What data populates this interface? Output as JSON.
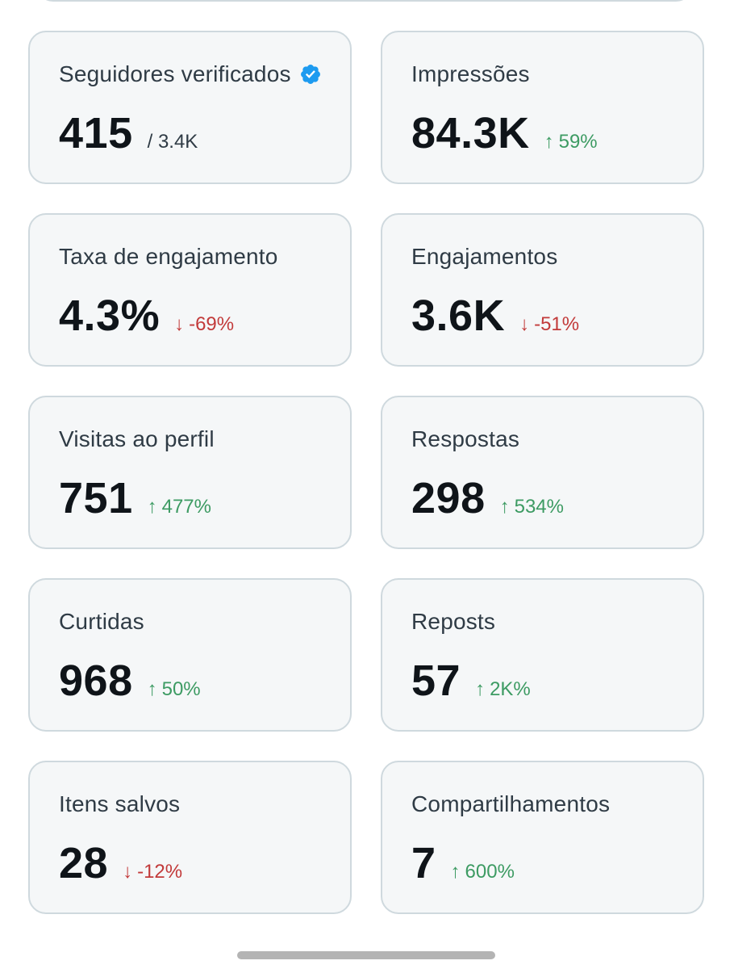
{
  "metrics": [
    {
      "label": "Seguidores verificados",
      "value": "415",
      "total": "/ 3.4K",
      "verified": true
    },
    {
      "label": "Impressões",
      "value": "84.3K",
      "change": "59%",
      "direction": "up"
    },
    {
      "label": "Taxa de engajamento",
      "value": "4.3%",
      "change": "-69%",
      "direction": "down"
    },
    {
      "label": "Engajamentos",
      "value": "3.6K",
      "change": "-51%",
      "direction": "down"
    },
    {
      "label": "Visitas ao perfil",
      "value": "751",
      "change": "477%",
      "direction": "up"
    },
    {
      "label": "Respostas",
      "value": "298",
      "change": "534%",
      "direction": "up"
    },
    {
      "label": "Curtidas",
      "value": "968",
      "change": "50%",
      "direction": "up"
    },
    {
      "label": "Reposts",
      "value": "57",
      "change": "2K%",
      "direction": "up"
    },
    {
      "label": "Itens salvos",
      "value": "28",
      "change": "-12%",
      "direction": "down"
    },
    {
      "label": "Compartilhamentos",
      "value": "7",
      "change": "600%",
      "direction": "up"
    }
  ],
  "icons": {
    "verified": "verified-badge-icon",
    "up": "arrow-up-icon",
    "down": "arrow-down-icon"
  },
  "colors": {
    "up": "#3d9b63",
    "down": "#c23a3a",
    "verified": "#1d9bf0",
    "card_bg": "#f5f7f8",
    "card_border": "#cfd9de"
  }
}
